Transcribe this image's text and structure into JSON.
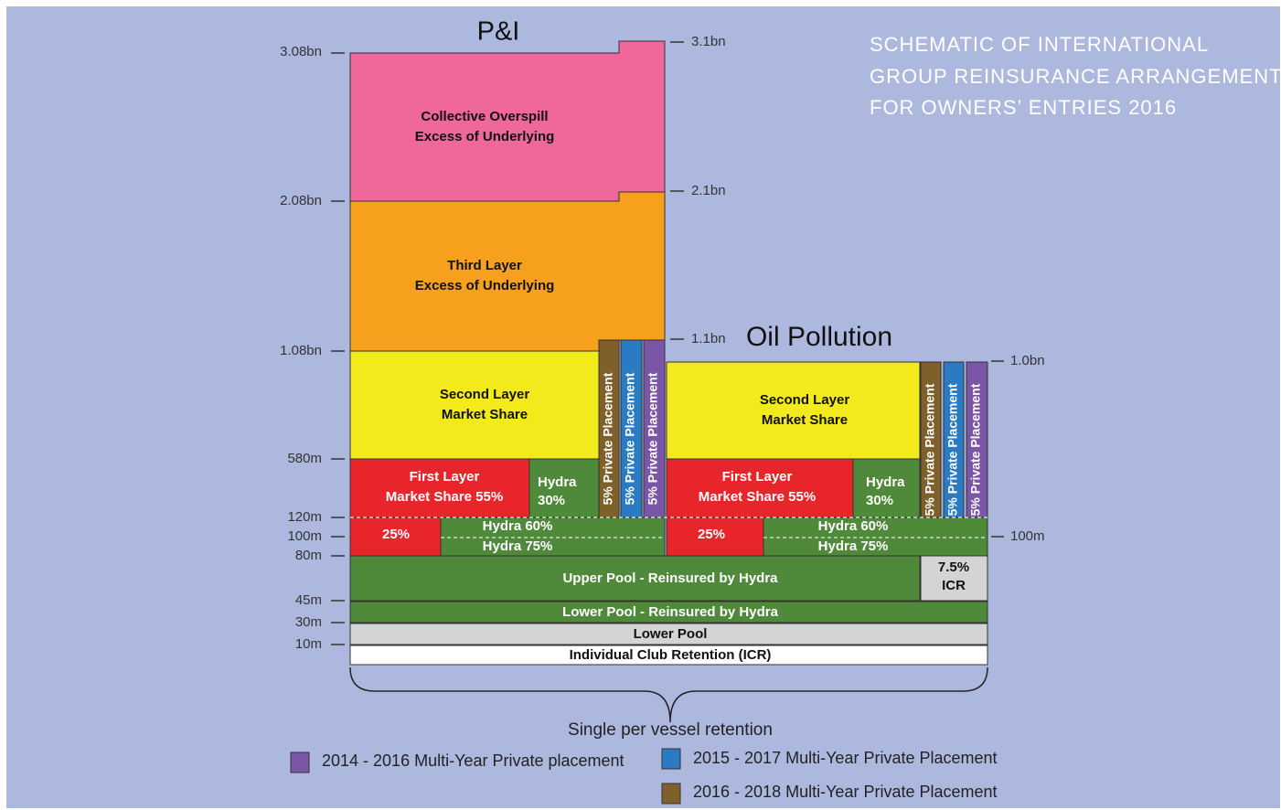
{
  "title": {
    "lines": [
      "SCHEMATIC OF INTERNATIONAL",
      "GROUP REINSURANCE ARRANGEMENTS",
      "FOR OWNERS’ ENTRIES 2016"
    ]
  },
  "left_axis": [
    "3.08bn",
    "2.08bn",
    "1.08bn",
    "580m",
    "120m",
    "100m",
    "80m",
    "45m",
    "30m",
    "10m"
  ],
  "right_axis": [
    "3.1bn",
    "2.1bn",
    "1.1bn",
    "1.0bn",
    "100m"
  ],
  "pi": {
    "label": "P&I",
    "collective": [
      "Collective Overspill",
      "Excess of Underlying"
    ],
    "third": [
      "Third Layer",
      "Excess of Underlying"
    ],
    "second": [
      "Second Layer",
      "Market Share"
    ],
    "first": [
      "First Layer",
      "Market Share 55%"
    ],
    "hydra30": [
      "Hydra",
      "30%"
    ],
    "red25": "25%",
    "hydra60": "Hydra 60%",
    "hydra75": "Hydra 75%",
    "placements": [
      "5% Private Placement",
      "5% Private Placement",
      "5% Private Placement"
    ]
  },
  "op": {
    "label": "Oil Pollution",
    "second": [
      "Second Layer",
      "Market Share"
    ],
    "first": [
      "First Layer",
      "Market Share 55%"
    ],
    "hydra30": [
      "Hydra",
      "30%"
    ],
    "red25": "25%",
    "hydra60": "Hydra 60%",
    "hydra75": "Hydra 75%",
    "placements": [
      "5% Private Placement",
      "5% Private Placement",
      "5% Private Placement"
    ]
  },
  "pool": {
    "upper": "Upper Pool - Reinsured by Hydra",
    "icr_share": [
      "7.5%",
      "ICR"
    ],
    "lower_reinsured": "Lower Pool - Reinsured by Hydra",
    "lower": "Lower Pool",
    "icr": "Individual Club Retention (ICR)",
    "retention": "Single per vessel retention"
  },
  "legend": [
    "2014 - 2016 Multi-Year Private placement",
    "2015 - 2017 Multi-Year Private Placement",
    "2016 - 2018 Multi-Year Private Placement"
  ]
}
